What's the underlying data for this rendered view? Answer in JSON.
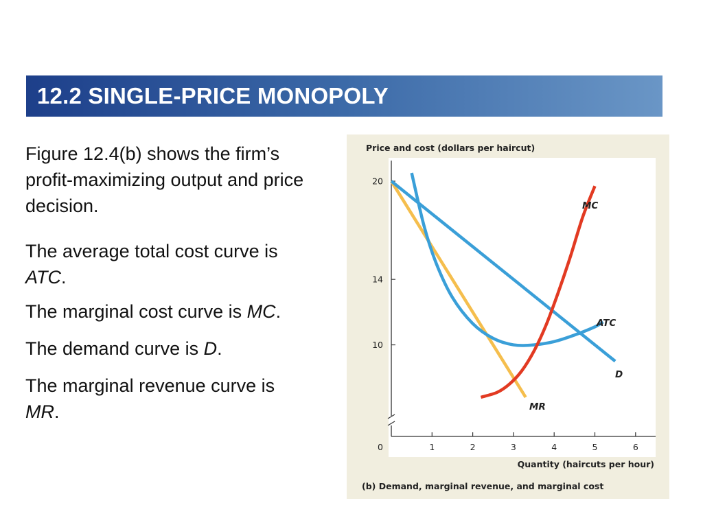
{
  "slide": {
    "title": "12.2 SINGLE-PRICE MONOPOLY",
    "paragraphs": [
      {
        "text": "Figure 12.4(b) shows the firm’s profit-maximizing output and price decision.",
        "term": "",
        "end": ""
      },
      {
        "text": "The average total cost curve is ",
        "term": "ATC",
        "end": "."
      },
      {
        "text": "The marginal cost curve is ",
        "term": "MC",
        "end": "."
      },
      {
        "text": "The demand curve is ",
        "term": "D",
        "end": "."
      },
      {
        "text": "The marginal revenue curve is ",
        "term": "MR",
        "end": "."
      }
    ]
  },
  "colors": {
    "title_bar_start": "#1d3f8a",
    "title_bar_end": "#6a96c6",
    "figure_bg": "#f1eedf",
    "blue_curves": "#3a9fd8",
    "mr_curve": "#f5be4d",
    "mc_curve": "#e23a22"
  },
  "chart_data": {
    "type": "line",
    "title": "",
    "ylabel": "Price and cost (dollars per haircut)",
    "xlabel": "Quantity (haircuts per hour)",
    "caption": "(b) Demand, marginal revenue, and marginal cost",
    "xlim": [
      0,
      6.5
    ],
    "ylim": [
      0,
      21
    ],
    "y_axis_break": true,
    "x_ticks": [
      0,
      1,
      2,
      3,
      4,
      5,
      6
    ],
    "y_ticks": [
      10,
      14,
      20
    ],
    "series": [
      {
        "name": "D",
        "color": "#3a9fd8",
        "x": [
          0,
          5.5
        ],
        "y": [
          20,
          9.0
        ]
      },
      {
        "name": "MR",
        "color": "#f5be4d",
        "x": [
          0,
          3.3
        ],
        "y": [
          20,
          6.8
        ]
      },
      {
        "name": "MC",
        "color": "#e23a22",
        "x": [
          2.2,
          2.6,
          2.9,
          3.2,
          3.5,
          3.8,
          4.1,
          4.4,
          4.7,
          5.0
        ],
        "y": [
          6.8,
          7.1,
          7.6,
          8.4,
          9.6,
          11.2,
          13.2,
          15.4,
          17.8,
          19.7
        ]
      },
      {
        "name": "ATC",
        "color": "#3a9fd8",
        "x": [
          0.5,
          0.8,
          1.1,
          1.5,
          2.0,
          2.5,
          3.0,
          3.5,
          4.0,
          4.5,
          5.0,
          5.2
        ],
        "y": [
          20.5,
          17.3,
          15.0,
          12.9,
          11.3,
          10.4,
          10.0,
          10.0,
          10.2,
          10.6,
          11.1,
          11.4
        ]
      }
    ]
  }
}
